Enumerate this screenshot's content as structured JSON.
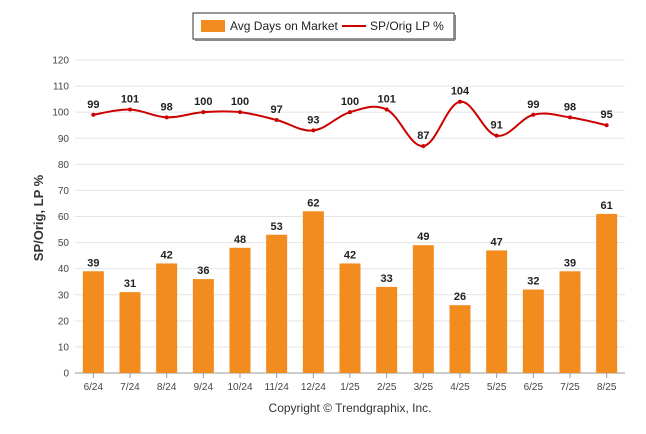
{
  "chart_data": {
    "type": "bar",
    "categories": [
      "6/24",
      "7/24",
      "8/24",
      "9/24",
      "10/24",
      "11/24",
      "12/24",
      "1/25",
      "2/25",
      "3/25",
      "4/25",
      "5/25",
      "6/25",
      "7/25",
      "8/25"
    ],
    "series": [
      {
        "name": "Avg Days on Market",
        "type": "bar",
        "color": "#f28c1e",
        "values": [
          39,
          31,
          42,
          36,
          48,
          53,
          62,
          42,
          33,
          49,
          26,
          47,
          32,
          39,
          61
        ]
      },
      {
        "name": "SP/Orig LP %",
        "type": "line",
        "color": "#cc0000",
        "values": [
          99,
          101,
          98,
          100,
          100,
          97,
          93,
          100,
          101,
          87,
          104,
          91,
          99,
          98,
          95
        ]
      }
    ],
    "ylabel": "SP/Orig, LP %",
    "ylim": [
      0,
      120
    ],
    "yticks": [
      0,
      10,
      20,
      30,
      40,
      50,
      60,
      70,
      80,
      90,
      100,
      110,
      120
    ],
    "grid": true,
    "legend": "top-center"
  },
  "legend": {
    "bar_label": "Avg Days on Market",
    "line_label": "SP/Orig LP %"
  },
  "footer": {
    "copyright": "Copyright © Trendgraphix, Inc."
  }
}
